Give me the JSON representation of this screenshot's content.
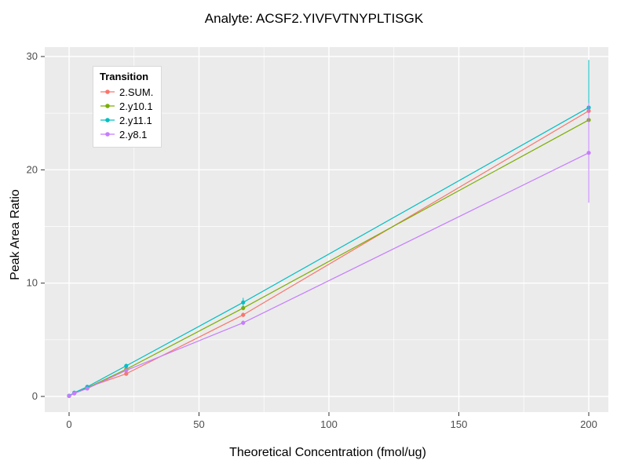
{
  "chart_data": {
    "type": "line",
    "title": "Analyte: ACSF2.YIVFVTNYPLTISGK",
    "xlabel": "Theoretical Concentration (fmol/ug)",
    "ylabel": "Peak Area Ratio",
    "legend_title": "Transition",
    "legend_position": "top-left-inside",
    "grid": true,
    "panel_bg": "#EBEBEB",
    "grid_color": "#FFFFFF",
    "tick_label_color": "#4D4D4D",
    "xlim": [
      0,
      200
    ],
    "ylim": [
      0,
      30
    ],
    "x_ticks": [
      0,
      50,
      100,
      150,
      200
    ],
    "x_minor_ticks": [
      25,
      75,
      125,
      175
    ],
    "y_ticks": [
      0,
      10,
      20,
      30
    ],
    "y_minor_ticks": [
      5,
      15,
      25
    ],
    "x": [
      0,
      2,
      7,
      22,
      67,
      200
    ],
    "series": [
      {
        "name": "2.SUM.",
        "color": "#F8766D",
        "values": [
          0.05,
          0.3,
          0.8,
          2.0,
          7.2,
          25.2
        ],
        "errors": [
          0,
          0,
          0,
          0,
          0.2,
          0.5
        ]
      },
      {
        "name": "2.y10.1",
        "color": "#7CAE00",
        "values": [
          0.04,
          0.28,
          0.75,
          2.4,
          7.8,
          24.4
        ],
        "errors": [
          0,
          0,
          0,
          0,
          0.2,
          1.2
        ]
      },
      {
        "name": "2.y11.1",
        "color": "#00BFC4",
        "values": [
          0.06,
          0.33,
          0.85,
          2.7,
          8.3,
          25.5
        ],
        "errors": [
          0,
          0,
          0,
          0.15,
          0.4,
          4.2
        ]
      },
      {
        "name": "2.y8.1",
        "color": "#C77CFF",
        "values": [
          0.04,
          0.27,
          0.7,
          2.3,
          6.5,
          21.5
        ],
        "errors": [
          0,
          0,
          0,
          0,
          0.2,
          4.4
        ]
      }
    ]
  }
}
